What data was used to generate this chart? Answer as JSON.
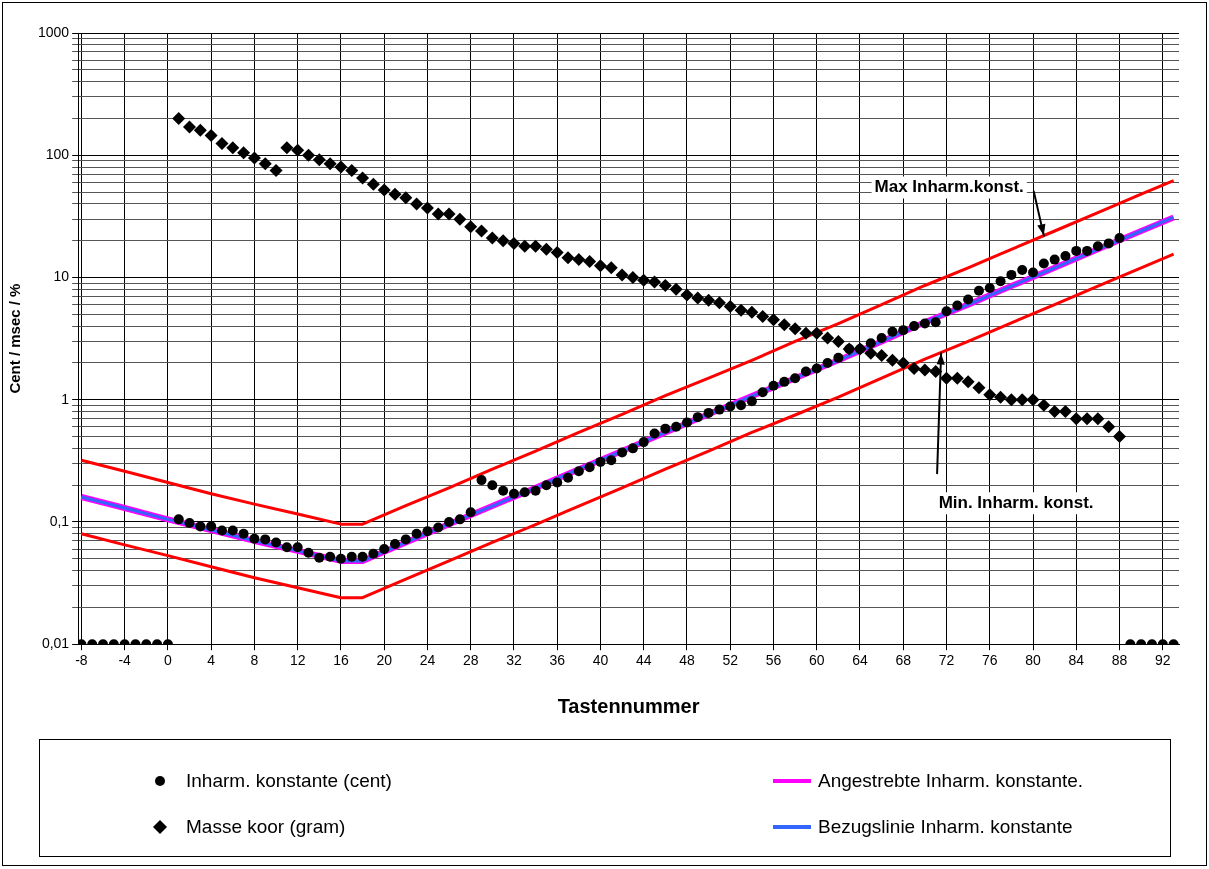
{
  "chart_data": {
    "type": "scatter",
    "xlabel": "Tastennummer",
    "ylabel": "Cent / msec / %",
    "log": "y",
    "grid": true,
    "legend": "bottom",
    "x": [
      -8,
      -7,
      -6,
      -5,
      -4,
      -3,
      -2,
      -1,
      0,
      1,
      2,
      3,
      4,
      5,
      6,
      7,
      8,
      9,
      10,
      11,
      12,
      13,
      14,
      15,
      16,
      17,
      18,
      19,
      20,
      21,
      22,
      23,
      24,
      25,
      26,
      27,
      28,
      29,
      30,
      31,
      32,
      33,
      34,
      35,
      36,
      37,
      38,
      39,
      40,
      41,
      42,
      43,
      44,
      45,
      46,
      47,
      48,
      49,
      50,
      51,
      52,
      53,
      54,
      55,
      56,
      57,
      58,
      59,
      60,
      61,
      62,
      63,
      64,
      65,
      66,
      67,
      68,
      69,
      70,
      71,
      72,
      73,
      74,
      75,
      76,
      77,
      78,
      79,
      80,
      81,
      82,
      83,
      84,
      85,
      86,
      87,
      88,
      89,
      90,
      91,
      92,
      93
    ],
    "xlim": [
      -8.3,
      93.5
    ],
    "xticks": [
      -8,
      -4,
      0,
      4,
      8,
      12,
      16,
      20,
      24,
      28,
      32,
      36,
      40,
      44,
      48,
      52,
      56,
      60,
      64,
      68,
      72,
      76,
      80,
      84,
      88,
      92
    ],
    "ylim": [
      0.01,
      1000
    ],
    "yticks": [
      {
        "value": 0.01,
        "label": "0,01"
      },
      {
        "value": 0.02,
        "label": null
      },
      {
        "value": 0.03,
        "label": null
      },
      {
        "value": 0.04,
        "label": null
      },
      {
        "value": 0.05,
        "label": null
      },
      {
        "value": 0.06,
        "label": null
      },
      {
        "value": 0.07,
        "label": null
      },
      {
        "value": 0.08,
        "label": null
      },
      {
        "value": 0.09,
        "label": null
      },
      {
        "value": 0.1,
        "label": "0,1"
      },
      {
        "value": 0.2,
        "label": null
      },
      {
        "value": 0.3,
        "label": null
      },
      {
        "value": 0.4,
        "label": null
      },
      {
        "value": 0.5,
        "label": null
      },
      {
        "value": 0.6,
        "label": null
      },
      {
        "value": 0.7,
        "label": null
      },
      {
        "value": 0.8,
        "label": null
      },
      {
        "value": 0.9,
        "label": null
      },
      1,
      {
        "value": 2,
        "label": null
      },
      {
        "value": 3,
        "label": null
      },
      {
        "value": 4,
        "label": null
      },
      {
        "value": 5,
        "label": null
      },
      {
        "value": 6,
        "label": null
      },
      {
        "value": 7,
        "label": null
      },
      {
        "value": 8,
        "label": null
      },
      {
        "value": 9,
        "label": null
      },
      10,
      {
        "value": 20,
        "label": null
      },
      {
        "value": 30,
        "label": null
      },
      {
        "value": 40,
        "label": null
      },
      {
        "value": 50,
        "label": null
      },
      {
        "value": 60,
        "label": null
      },
      {
        "value": 70,
        "label": null
      },
      {
        "value": 80,
        "label": null
      },
      {
        "value": 90,
        "label": null
      },
      100,
      {
        "value": 200,
        "label": null
      },
      {
        "value": 300,
        "label": null
      },
      {
        "value": 400,
        "label": null
      },
      {
        "value": 500,
        "label": null
      },
      {
        "value": 600,
        "label": null
      },
      {
        "value": 700,
        "label": null
      },
      {
        "value": 800,
        "label": null
      },
      {
        "value": 900,
        "label": null
      },
      1000
    ],
    "series": [
      {
        "type": "line",
        "color": "#ff00ff",
        "name": "Angestrebte Inharm. konstante.",
        "marker": "none",
        "x": [
          -8,
          -4,
          0,
          4,
          8,
          12,
          16,
          18,
          22,
          26,
          30,
          34,
          38,
          42,
          46,
          50,
          54,
          58,
          62,
          66,
          70,
          74,
          78,
          82,
          86,
          90,
          93
        ],
        "values": [
          0.16,
          0.13,
          0.105,
          0.086,
          0.07,
          0.058,
          0.048,
          0.048,
          0.068,
          0.096,
          0.135,
          0.19,
          0.27,
          0.38,
          0.54,
          0.76,
          1.07,
          1.5,
          2.1,
          3.0,
          4.3,
          6.0,
          8.5,
          12,
          17,
          24,
          31
        ]
      },
      {
        "type": "line",
        "color": "#3366ff",
        "name": "Bezugslinie Inharm. konstante",
        "marker": "none",
        "x": [
          -8,
          -4,
          0,
          4,
          8,
          12,
          16,
          18,
          22,
          26,
          30,
          34,
          38,
          42,
          46,
          50,
          54,
          58,
          62,
          66,
          70,
          74,
          78,
          82,
          86,
          90,
          93
        ],
        "values": [
          0.16,
          0.13,
          0.105,
          0.086,
          0.07,
          0.058,
          0.048,
          0.048,
          0.068,
          0.096,
          0.135,
          0.19,
          0.27,
          0.38,
          0.54,
          0.76,
          1.07,
          1.5,
          2.1,
          3.0,
          4.3,
          6.0,
          8.5,
          12,
          17,
          24,
          31
        ]
      },
      {
        "type": "line",
        "color": "#ff0000",
        "marker": "none",
        "x": [
          -8,
          -4,
          0,
          4,
          8,
          12,
          16,
          18,
          22,
          26,
          30,
          34,
          38,
          42,
          46,
          50,
          54,
          58,
          62,
          66,
          70,
          74,
          78,
          82,
          86,
          90,
          93
        ],
        "values": [
          0.32,
          0.26,
          0.21,
          0.17,
          0.14,
          0.116,
          0.096,
          0.096,
          0.136,
          0.19,
          0.27,
          0.38,
          0.54,
          0.76,
          1.08,
          1.5,
          2.1,
          3.0,
          4.2,
          6.0,
          8.6,
          12,
          17,
          24,
          34,
          48,
          62
        ]
      },
      {
        "type": "line",
        "color": "#ff0000",
        "marker": "none",
        "x": [
          -8,
          -4,
          0,
          4,
          8,
          12,
          16,
          18,
          22,
          26,
          30,
          34,
          38,
          42,
          46,
          50,
          54,
          58,
          62,
          66,
          70,
          74,
          78,
          82,
          86,
          90,
          93
        ],
        "values": [
          0.08,
          0.065,
          0.053,
          0.043,
          0.035,
          0.029,
          0.024,
          0.024,
          0.034,
          0.048,
          0.068,
          0.095,
          0.135,
          0.19,
          0.27,
          0.38,
          0.54,
          0.75,
          1.05,
          1.5,
          2.15,
          3.0,
          4.25,
          6.0,
          8.5,
          12,
          15.5
        ]
      },
      {
        "type": "scatter",
        "color": "#000000",
        "name": "Inharm. konstante (cent)",
        "marker": "circle",
        "values": [
          0.01,
          0.01,
          0.01,
          0.01,
          0.01,
          0.01,
          0.01,
          0.01,
          0.01,
          0.105,
          0.098,
          0.092,
          0.092,
          0.085,
          0.085,
          0.08,
          0.073,
          0.072,
          0.068,
          0.062,
          0.062,
          0.056,
          0.051,
          0.052,
          0.05,
          0.052,
          0.052,
          0.055,
          0.06,
          0.066,
          0.072,
          0.08,
          0.084,
          0.09,
          0.1,
          0.105,
          0.12,
          0.22,
          0.2,
          0.18,
          0.17,
          0.175,
          0.18,
          0.2,
          0.21,
          0.23,
          0.26,
          0.28,
          0.31,
          0.32,
          0.37,
          0.4,
          0.45,
          0.53,
          0.58,
          0.6,
          0.65,
          0.72,
          0.78,
          0.83,
          0.88,
          0.9,
          0.97,
          1.15,
          1.3,
          1.4,
          1.5,
          1.7,
          1.8,
          2.0,
          2.2,
          2.6,
          2.6,
          2.9,
          3.2,
          3.6,
          3.7,
          4.0,
          4.2,
          4.3,
          5.3,
          5.9,
          6.6,
          7.8,
          8.2,
          9.3,
          10.5,
          11.5,
          11,
          13,
          14,
          15,
          16.5,
          16.5,
          18,
          19,
          21,
          0.01,
          0.01,
          0.01,
          0.01,
          0.01
        ]
      },
      {
        "type": "scatter",
        "color": "#000000",
        "name": "Masse koor (gram)",
        "marker": "diamond",
        "values": [
          null,
          null,
          null,
          null,
          null,
          null,
          null,
          null,
          null,
          200,
          170,
          160,
          145,
          125,
          115,
          105,
          95,
          85,
          75,
          115,
          110,
          100,
          92,
          85,
          80,
          75,
          65,
          58,
          52,
          48,
          45,
          40,
          37,
          33,
          33,
          30,
          26,
          24,
          21,
          20,
          19,
          18,
          18,
          17,
          16,
          14.5,
          14,
          13.5,
          12.5,
          12,
          10.5,
          10,
          9.5,
          9.2,
          8.6,
          8,
          7.2,
          6.8,
          6.5,
          6.2,
          5.8,
          5.4,
          5.2,
          4.8,
          4.5,
          4.1,
          3.8,
          3.5,
          3.5,
          3.2,
          3.0,
          2.6,
          2.6,
          2.4,
          2.3,
          2.1,
          2.0,
          1.8,
          1.75,
          1.7,
          1.5,
          1.5,
          1.4,
          1.25,
          1.1,
          1.05,
          1.0,
          1.0,
          1.0,
          0.9,
          0.8,
          0.8,
          0.7,
          0.7,
          0.7,
          0.6,
          0.5,
          null,
          null,
          null,
          null,
          null
        ]
      }
    ],
    "annotations": [
      {
        "text": "Max Inharm.konst.",
        "x": 81,
        "y": 22
      },
      {
        "text": "Min. Inharm. konst.",
        "x": 71.5,
        "y": 2.4
      }
    ]
  }
}
